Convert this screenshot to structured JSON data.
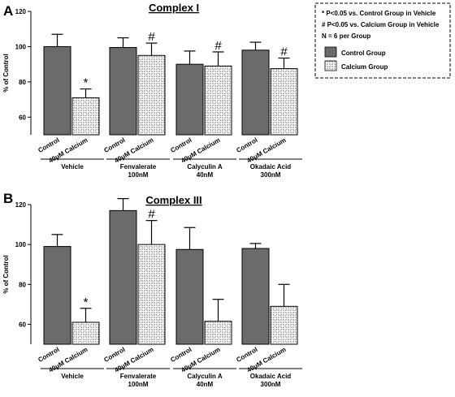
{
  "panel_letters": [
    "A",
    "B"
  ],
  "colors": {
    "control": "#6b6b6b",
    "calcium_pattern": "#ffffff",
    "axis": "#000000"
  },
  "legend": {
    "lines": [
      "* P<0.05 vs. Control Group in Vehicle",
      "# P<0.05 vs. Calcium Group in Vehicle",
      "N = 6 per Group"
    ],
    "series": [
      "Control Group",
      "Calcium Group"
    ]
  },
  "chart_data": [
    {
      "type": "bar",
      "title": "Complex I",
      "ylabel": "% of Control",
      "ylim": [
        50,
        120
      ],
      "yticks": [
        60,
        80,
        100,
        120
      ],
      "bar_labels": [
        "Control",
        "40μM Calcium"
      ],
      "groups": [
        {
          "name_lines": [
            "Vehicle"
          ],
          "bars": [
            {
              "value": 100,
              "err": 7,
              "mark": ""
            },
            {
              "value": 71,
              "err": 5,
              "mark": "*"
            }
          ]
        },
        {
          "name_lines": [
            "Fenvalerate",
            "100nM"
          ],
          "bars": [
            {
              "value": 99.5,
              "err": 5.5,
              "mark": ""
            },
            {
              "value": 95,
              "err": 7,
              "mark": "#"
            }
          ]
        },
        {
          "name_lines": [
            "Calyculin A",
            "40nM"
          ],
          "bars": [
            {
              "value": 90,
              "err": 7.5,
              "mark": ""
            },
            {
              "value": 89,
              "err": 8,
              "mark": "#"
            }
          ]
        },
        {
          "name_lines": [
            "Okadaic Acid",
            "300nM"
          ],
          "bars": [
            {
              "value": 98,
              "err": 4.5,
              "mark": ""
            },
            {
              "value": 87.5,
              "err": 6,
              "mark": "#"
            }
          ]
        }
      ]
    },
    {
      "type": "bar",
      "title": "Complex III",
      "ylabel": "% of Control",
      "ylim": [
        50,
        120
      ],
      "yticks": [
        60,
        80,
        100,
        120
      ],
      "bar_labels": [
        "Control",
        "40μM Calcium"
      ],
      "groups": [
        {
          "name_lines": [
            "Vehicle"
          ],
          "bars": [
            {
              "value": 99,
              "err": 6,
              "mark": ""
            },
            {
              "value": 61,
              "err": 7,
              "mark": "*"
            }
          ]
        },
        {
          "name_lines": [
            "Fenvalerate",
            "100nM"
          ],
          "bars": [
            {
              "value": 117,
              "err": 6,
              "mark": ""
            },
            {
              "value": 100,
              "err": 12,
              "mark": "#"
            }
          ]
        },
        {
          "name_lines": [
            "Calyculin A",
            "40nM"
          ],
          "bars": [
            {
              "value": 97.5,
              "err": 11,
              "mark": ""
            },
            {
              "value": 61.5,
              "err": 11,
              "mark": ""
            }
          ]
        },
        {
          "name_lines": [
            "Okadaic Acid",
            "300nM"
          ],
          "bars": [
            {
              "value": 98,
              "err": 2.5,
              "mark": ""
            },
            {
              "value": 69,
              "err": 11,
              "mark": ""
            }
          ]
        }
      ]
    }
  ]
}
